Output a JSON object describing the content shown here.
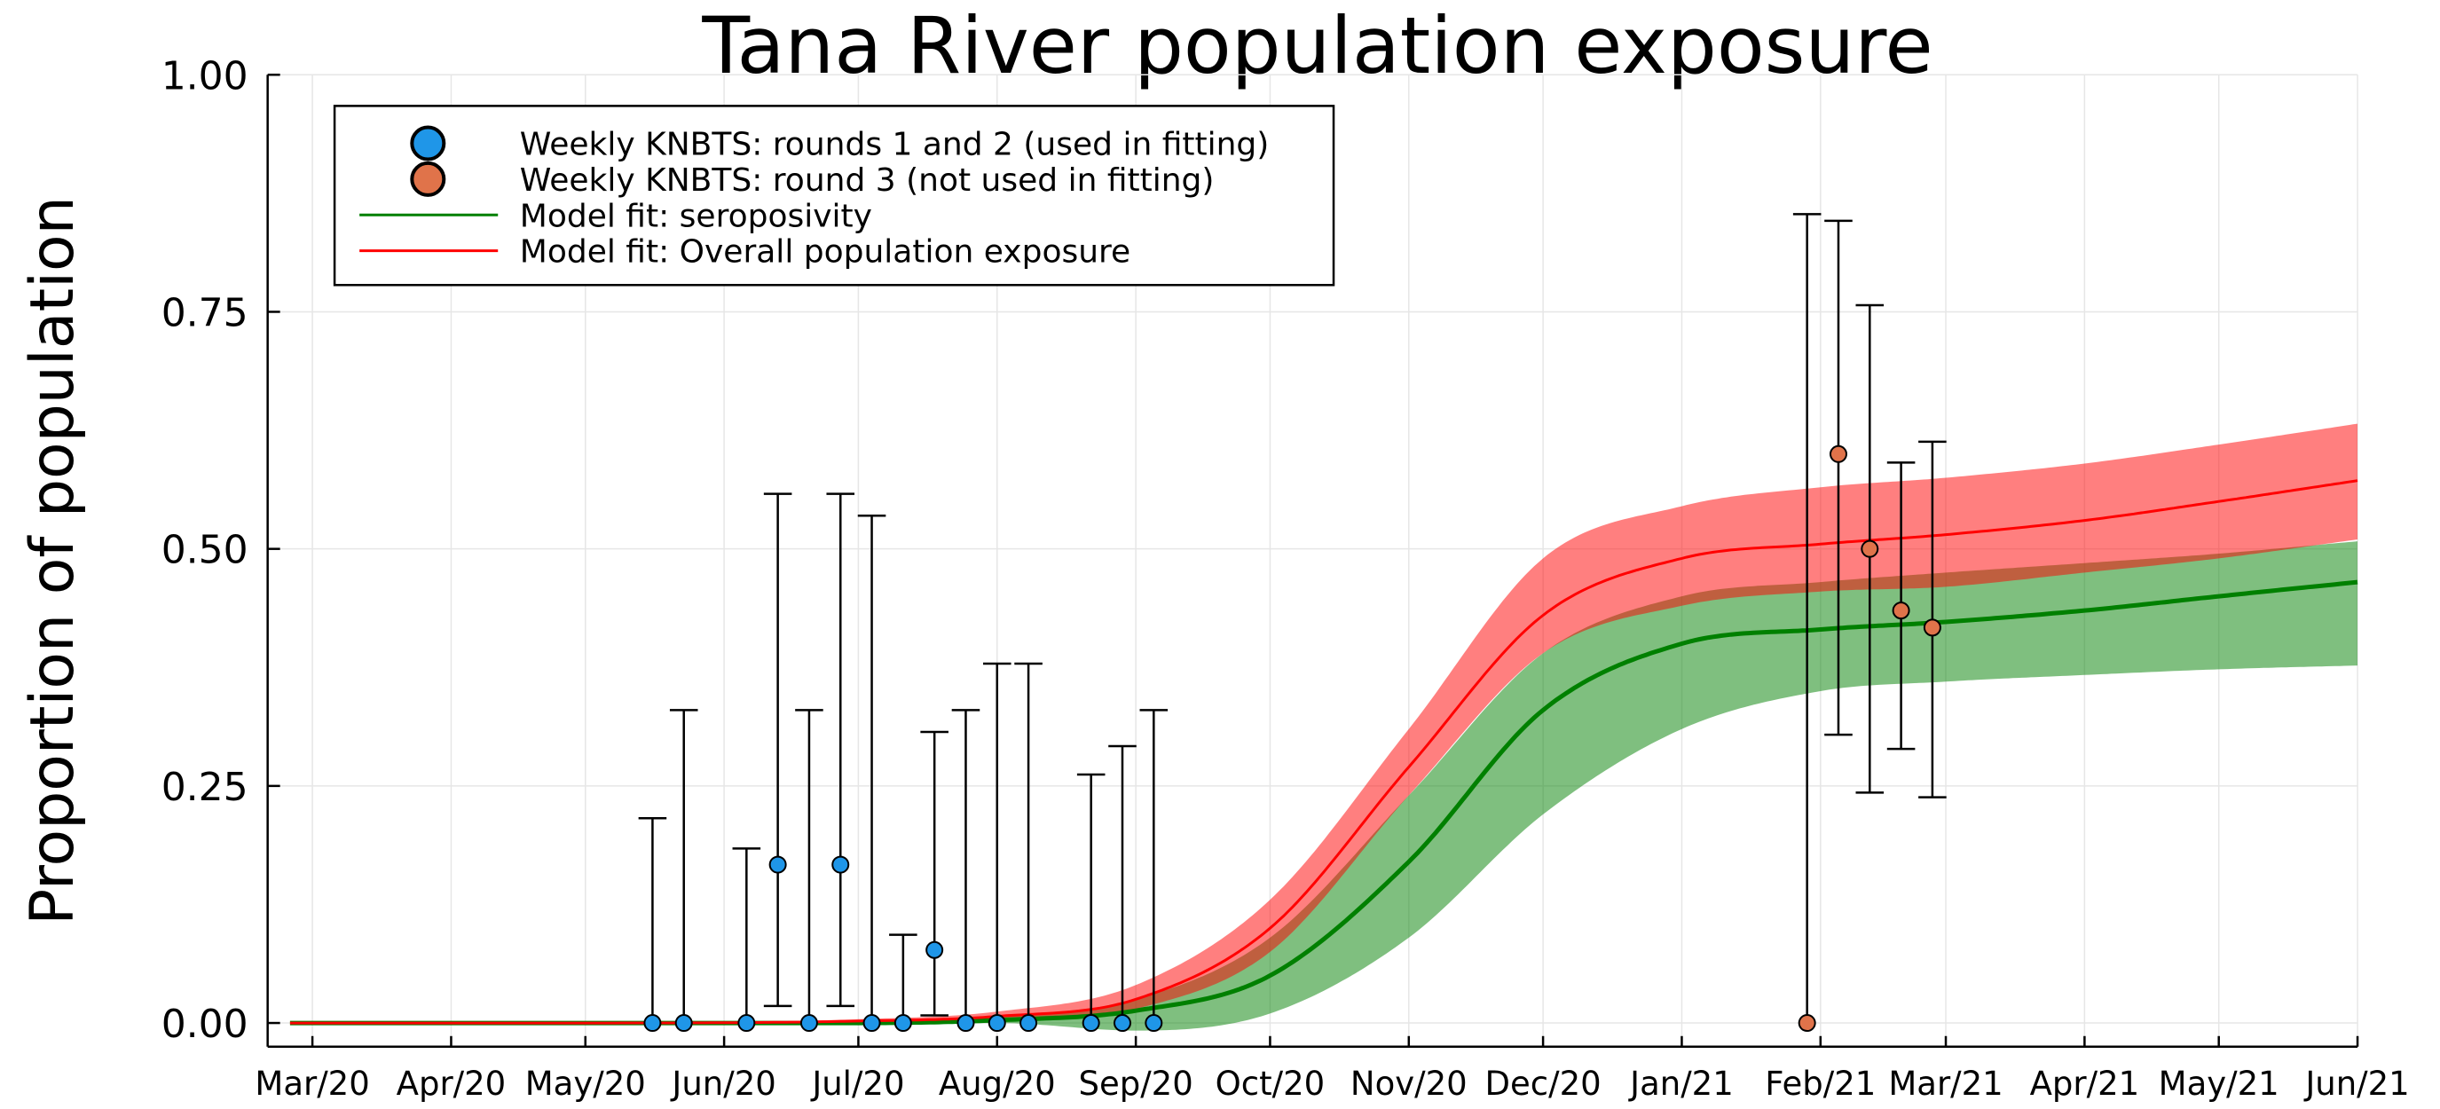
{
  "chart_data": {
    "type": "line",
    "title": "Tana River population exposure",
    "xlabel": "",
    "ylabel": "Proportion of population",
    "x_axis": {
      "type": "date",
      "range": [
        "2020-02-20",
        "2021-06-01"
      ],
      "tick_labels": [
        "Mar/20",
        "Apr/20",
        "May/20",
        "Jun/20",
        "Jul/20",
        "Aug/20",
        "Sep/20",
        "Oct/20",
        "Nov/20",
        "Dec/20",
        "Jan/21",
        "Feb/21",
        "Mar/21",
        "Apr/21",
        "May/21",
        "Jun/21"
      ],
      "tick_dates": [
        "2020-03-01",
        "2020-04-01",
        "2020-05-01",
        "2020-06-01",
        "2020-07-01",
        "2020-08-01",
        "2020-09-01",
        "2020-10-01",
        "2020-11-01",
        "2020-12-01",
        "2021-01-01",
        "2021-02-01",
        "2021-03-01",
        "2021-04-01",
        "2021-05-01",
        "2021-06-01"
      ]
    },
    "y_axis": {
      "range": [
        -0.025,
        1.0
      ],
      "ticks": [
        0.0,
        0.25,
        0.5,
        0.75,
        1.0
      ],
      "tick_labels": [
        "0.00",
        "0.25",
        "0.50",
        "0.75",
        "1.00"
      ]
    },
    "grid": true,
    "legend": {
      "placement": "top-left",
      "entries": [
        {
          "label": "Weekly KNBTS: rounds 1 and 2 (used in fitting)",
          "kind": "marker",
          "color": "#1f96e8"
        },
        {
          "label": "Weekly KNBTS: round 3 (not used in fitting)",
          "kind": "marker",
          "color": "#e0734a"
        },
        {
          "label": "Model fit: seroposivity",
          "kind": "line",
          "color": "#008000"
        },
        {
          "label": "Model fit: Overall population exposure",
          "kind": "line",
          "color": "#ff0000"
        }
      ]
    },
    "series": [
      {
        "name": "Weekly KNBTS: rounds 1 and 2 (used in fitting)",
        "type": "scatter",
        "color": "#1f96e8",
        "points": [
          {
            "x": "2020-05-16",
            "y": 0.0,
            "lo": 0.0,
            "hi": 0.216
          },
          {
            "x": "2020-05-23",
            "y": 0.0,
            "lo": 0.0,
            "hi": 0.33
          },
          {
            "x": "2020-06-06",
            "y": 0.0,
            "lo": 0.0,
            "hi": 0.184
          },
          {
            "x": "2020-06-13",
            "y": 0.167,
            "lo": 0.018,
            "hi": 0.558
          },
          {
            "x": "2020-06-20",
            "y": 0.0,
            "lo": 0.0,
            "hi": 0.33
          },
          {
            "x": "2020-06-27",
            "y": 0.167,
            "lo": 0.018,
            "hi": 0.558
          },
          {
            "x": "2020-07-04",
            "y": 0.0,
            "lo": 0.0,
            "hi": 0.535
          },
          {
            "x": "2020-07-11",
            "y": 0.0,
            "lo": 0.0,
            "hi": 0.093
          },
          {
            "x": "2020-07-18",
            "y": 0.077,
            "lo": 0.008,
            "hi": 0.307
          },
          {
            "x": "2020-07-25",
            "y": 0.0,
            "lo": 0.0,
            "hi": 0.33
          },
          {
            "x": "2020-08-01",
            "y": 0.0,
            "lo": 0.0,
            "hi": 0.379
          },
          {
            "x": "2020-08-08",
            "y": 0.0,
            "lo": 0.0,
            "hi": 0.379
          },
          {
            "x": "2020-08-22",
            "y": 0.0,
            "lo": 0.0,
            "hi": 0.262
          },
          {
            "x": "2020-08-29",
            "y": 0.0,
            "lo": 0.0,
            "hi": 0.292
          },
          {
            "x": "2020-09-05",
            "y": 0.0,
            "lo": 0.0,
            "hi": 0.33
          }
        ]
      },
      {
        "name": "Weekly KNBTS: round 3 (not used in fitting)",
        "type": "scatter",
        "color": "#e0734a",
        "points": [
          {
            "x": "2021-01-29",
            "y": 0.0,
            "lo": 0.0,
            "hi": 0.853
          },
          {
            "x": "2021-02-05",
            "y": 0.6,
            "lo": 0.304,
            "hi": 0.846
          },
          {
            "x": "2021-02-12",
            "y": 0.5,
            "lo": 0.243,
            "hi": 0.757
          },
          {
            "x": "2021-02-19",
            "y": 0.435,
            "lo": 0.289,
            "hi": 0.591
          },
          {
            "x": "2021-02-26",
            "y": 0.417,
            "lo": 0.238,
            "hi": 0.613
          }
        ]
      },
      {
        "name": "Model fit: seroposivity",
        "type": "line",
        "color": "#008000",
        "band_opacity": 0.5,
        "points": [
          {
            "x": "2020-02-25",
            "mean": 0.0,
            "lo": 0.0,
            "hi": 0.0
          },
          {
            "x": "2020-05-01",
            "mean": 0.0,
            "lo": 0.0,
            "hi": 0.0
          },
          {
            "x": "2020-07-01",
            "mean": 0.0,
            "lo": 0.0,
            "hi": 0.002
          },
          {
            "x": "2020-08-01",
            "mean": 0.003,
            "lo": 0.0,
            "hi": 0.008
          },
          {
            "x": "2020-09-01",
            "mean": 0.013,
            "lo": -0.008,
            "hi": 0.025
          },
          {
            "x": "2020-10-01",
            "mean": 0.05,
            "lo": 0.01,
            "hi": 0.09
          },
          {
            "x": "2020-11-01",
            "mean": 0.17,
            "lo": 0.09,
            "hi": 0.24
          },
          {
            "x": "2020-12-01",
            "mean": 0.33,
            "lo": 0.22,
            "hi": 0.39
          },
          {
            "x": "2021-01-01",
            "mean": 0.4,
            "lo": 0.31,
            "hi": 0.45
          },
          {
            "x": "2021-02-01",
            "mean": 0.415,
            "lo": 0.35,
            "hi": 0.465
          },
          {
            "x": "2021-03-01",
            "mean": 0.423,
            "lo": 0.36,
            "hi": 0.475
          },
          {
            "x": "2021-04-01",
            "mean": 0.435,
            "lo": 0.367,
            "hi": 0.485
          },
          {
            "x": "2021-05-01",
            "mean": 0.45,
            "lo": 0.373,
            "hi": 0.495
          },
          {
            "x": "2021-06-01",
            "mean": 0.465,
            "lo": 0.377,
            "hi": 0.508
          }
        ]
      },
      {
        "name": "Model fit: Overall population exposure",
        "type": "line",
        "color": "#ff0000",
        "band_opacity": 0.5,
        "points": [
          {
            "x": "2020-02-25",
            "mean": 0.0,
            "lo": 0.0,
            "hi": 0.0
          },
          {
            "x": "2020-05-01",
            "mean": 0.0,
            "lo": 0.0,
            "hi": 0.0
          },
          {
            "x": "2020-07-01",
            "mean": 0.002,
            "lo": 0.0,
            "hi": 0.004
          },
          {
            "x": "2020-08-01",
            "mean": 0.007,
            "lo": 0.003,
            "hi": 0.012
          },
          {
            "x": "2020-09-01",
            "mean": 0.025,
            "lo": 0.015,
            "hi": 0.04
          },
          {
            "x": "2020-10-01",
            "mean": 0.1,
            "lo": 0.075,
            "hi": 0.13
          },
          {
            "x": "2020-11-01",
            "mean": 0.27,
            "lo": 0.24,
            "hi": 0.31
          },
          {
            "x": "2020-12-01",
            "mean": 0.43,
            "lo": 0.39,
            "hi": 0.49
          },
          {
            "x": "2021-01-01",
            "mean": 0.49,
            "lo": 0.44,
            "hi": 0.545
          },
          {
            "x": "2021-02-01",
            "mean": 0.505,
            "lo": 0.455,
            "hi": 0.565
          },
          {
            "x": "2021-03-01",
            "mean": 0.515,
            "lo": 0.46,
            "hi": 0.575
          },
          {
            "x": "2021-04-01",
            "mean": 0.53,
            "lo": 0.475,
            "hi": 0.59
          },
          {
            "x": "2021-05-01",
            "mean": 0.55,
            "lo": 0.49,
            "hi": 0.61
          },
          {
            "x": "2021-06-01",
            "mean": 0.572,
            "lo": 0.51,
            "hi": 0.632
          }
        ]
      }
    ]
  }
}
